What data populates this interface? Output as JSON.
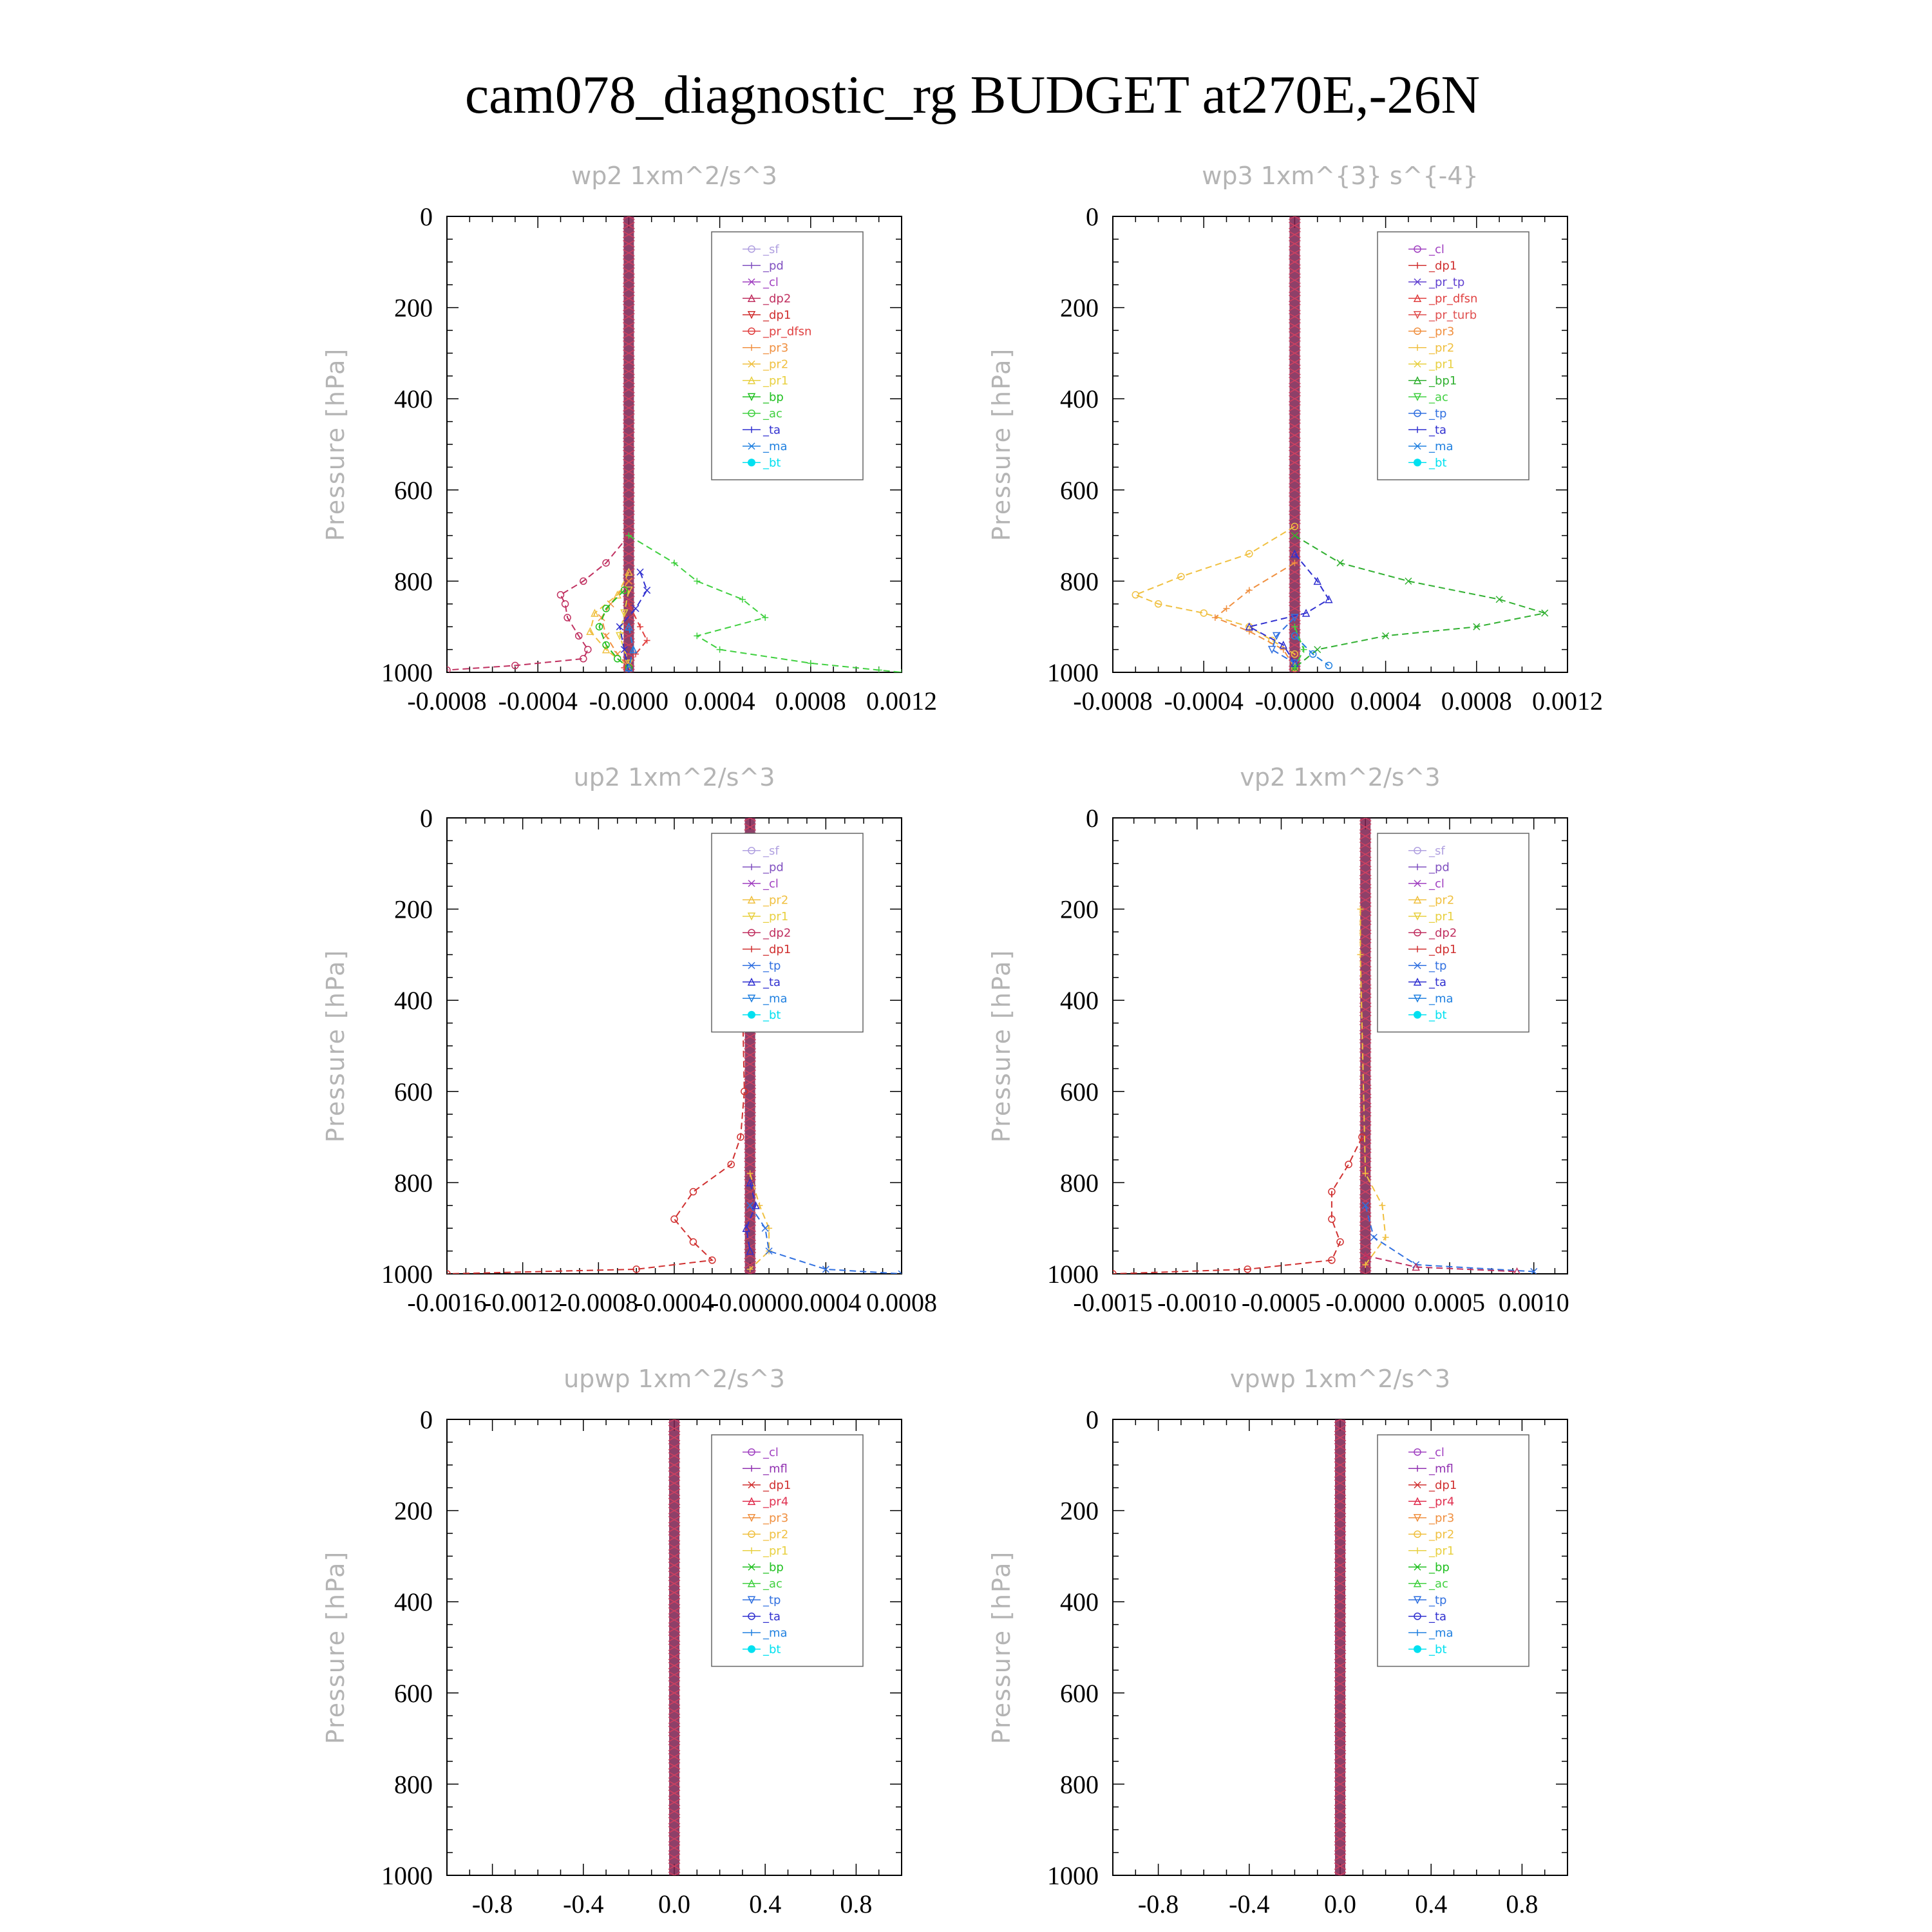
{
  "figure_title": "cam078_diagnostic_rg  BUDGET at270E,-26N",
  "colors": {
    "_sf": "#b0a0e0",
    "_pd": "#8050c0",
    "_cl": "#a040c0",
    "_dp2": "#c03060",
    "_dp1": "#d03030",
    "_pr_dfsn": "#e04040",
    "_pr3": "#f09040",
    "_pr2": "#f0c040",
    "_pr1": "#e8d040",
    "_bp": "#20c020",
    "_ac": "#40d040",
    "_ta": "#3030d0",
    "_ma": "#2080e0",
    "_bt": "#00e0f0",
    "_pr_tp": "#6040d0",
    "_pr_turb": "#e05050",
    "_bp1": "#30b030",
    "_tp": "#3070e0",
    "_mfl": "#9030b0",
    "_pr4": "#e03050"
  },
  "chart_data": [
    {
      "type": "line",
      "title": "wp2   1xm^2/s^3",
      "ylabel": "Pressure [hPa]",
      "xlim": [
        -0.0008,
        0.0012
      ],
      "ylim": [
        1000,
        0
      ],
      "xticks": [
        -0.0008,
        -0.0004,
        0.0,
        0.0004,
        0.0008,
        0.0012
      ],
      "xtick_labels": [
        "-0.0008",
        "-0.0004",
        "-0.0000",
        "0.0004",
        "0.0008",
        "0.0012"
      ],
      "yticks": [
        0,
        200,
        400,
        600,
        800,
        1000
      ],
      "ytick_labels": [
        "0",
        "200",
        "400",
        "600",
        "800",
        "1000"
      ],
      "legend": [
        "_sf",
        "_pd",
        "_cl",
        "_dp2",
        "_dp1",
        "_pr_dfsn",
        "_pr3",
        "_pr2",
        "_pr1",
        "_bp",
        "_ac",
        "_ta",
        "_ma",
        "_bt"
      ],
      "series": [
        {
          "name": "_dp2",
          "y": [
            700,
            760,
            800,
            830,
            850,
            880,
            920,
            950,
            970,
            985,
            995
          ],
          "x": [
            0.0,
            -0.0001,
            -0.0002,
            -0.0003,
            -0.00028,
            -0.00027,
            -0.00022,
            -0.00018,
            -0.0002,
            -0.0005,
            -0.0008
          ]
        },
        {
          "name": "_pr_dfsn",
          "y": [
            850,
            900,
            930,
            960,
            990,
            1000
          ],
          "x": [
            0.0,
            5e-05,
            8e-05,
            3e-05,
            -2e-05,
            0.0
          ]
        },
        {
          "name": "_pr3",
          "y": [
            800,
            850,
            880,
            920,
            960,
            990
          ],
          "x": [
            0.0,
            -8e-05,
            -0.00012,
            -0.0001,
            -5e-05,
            0.0
          ]
        },
        {
          "name": "_pr2",
          "y": [
            780,
            830,
            870,
            910,
            950,
            990
          ],
          "x": [
            0.0,
            -5e-05,
            -0.00015,
            -0.00017,
            -0.0001,
            0.0
          ]
        },
        {
          "name": "_pr1",
          "y": [
            820,
            870,
            920,
            980
          ],
          "x": [
            0.0,
            -2e-05,
            -4e-05,
            0.0
          ]
        },
        {
          "name": "_bp",
          "y": [
            820,
            860,
            900,
            940,
            970,
            990
          ],
          "x": [
            -2e-05,
            -0.0001,
            -0.00013,
            -0.0001,
            -5e-05,
            0.0
          ]
        },
        {
          "name": "_ac",
          "y": [
            700,
            760,
            800,
            840,
            880,
            920,
            950,
            980,
            995,
            1000
          ],
          "x": [
            0.0,
            0.0002,
            0.0003,
            0.0005,
            0.0006,
            0.0003,
            0.0004,
            0.0008,
            0.0011,
            0.0012
          ]
        },
        {
          "name": "_ta",
          "y": [
            780,
            820,
            860,
            900,
            950,
            1000
          ],
          "x": [
            5e-05,
            8e-05,
            3e-05,
            -4e-05,
            -2e-05,
            0.0
          ]
        },
        {
          "name": "_ma",
          "y": [
            900,
            950,
            990
          ],
          "x": [
            0.0,
            2e-05,
            0.0
          ]
        }
      ]
    },
    {
      "type": "line",
      "title": "wp3   1xm^{3} s^{-4}",
      "ylabel": "Pressure [hPa]",
      "xlim": [
        -0.0008,
        0.0012
      ],
      "ylim": [
        1000,
        0
      ],
      "xticks": [
        -0.0008,
        -0.0004,
        0.0,
        0.0004,
        0.0008,
        0.0012
      ],
      "xtick_labels": [
        "-0.0008",
        "-0.0004",
        "-0.0000",
        "0.0004",
        "0.0008",
        "0.0012"
      ],
      "yticks": [
        0,
        200,
        400,
        600,
        800,
        1000
      ],
      "ytick_labels": [
        "0",
        "200",
        "400",
        "600",
        "800",
        "1000"
      ],
      "legend": [
        "_cl",
        "_dp1",
        "_pr_tp",
        "_pr_dfsn",
        "_pr_turb",
        "_pr3",
        "_pr2",
        "_pr1",
        "_bp1",
        "_ac",
        "_tp",
        "_ta",
        "_ma",
        "_bt"
      ],
      "series": [
        {
          "name": "_pr2",
          "y": [
            680,
            740,
            790,
            830,
            850,
            870,
            900,
            930,
            960,
            990
          ],
          "x": [
            0.0,
            -0.0002,
            -0.0005,
            -0.0007,
            -0.0006,
            -0.0004,
            -0.0002,
            -0.0001,
            0.0,
            0.0
          ]
        },
        {
          "name": "_pr3",
          "y": [
            760,
            820,
            860,
            880,
            910,
            950,
            990
          ],
          "x": [
            0.0,
            -0.0002,
            -0.0003,
            -0.00035,
            -0.0002,
            -5e-05,
            0.0
          ]
        },
        {
          "name": "_bp1",
          "y": [
            700,
            760,
            800,
            840,
            870,
            900,
            920,
            950,
            990
          ],
          "x": [
            0.0,
            0.0002,
            0.0005,
            0.0009,
            0.0011,
            0.0008,
            0.0004,
            0.0001,
            0.0
          ]
        },
        {
          "name": "_ta",
          "y": [
            740,
            800,
            840,
            870,
            900,
            940,
            980
          ],
          "x": [
            0.0,
            0.0001,
            0.00015,
            5e-05,
            -0.0002,
            -5e-05,
            0.0
          ]
        },
        {
          "name": "_tp",
          "y": [
            880,
            920,
            950,
            980
          ],
          "x": [
            0.0,
            -8e-05,
            -0.0001,
            0.0
          ]
        },
        {
          "name": "_ma",
          "y": [
            920,
            960,
            985
          ],
          "x": [
            0.0,
            8e-05,
            0.00015
          ]
        },
        {
          "name": "_ac",
          "y": [
            900,
            950,
            990
          ],
          "x": [
            0.0,
            4e-05,
            0.0
          ]
        }
      ]
    },
    {
      "type": "line",
      "title": "up2   1xm^2/s^3",
      "ylabel": "Pressure [hPa]",
      "xlim": [
        -0.0016,
        0.0008
      ],
      "ylim": [
        1000,
        0
      ],
      "xticks": [
        -0.0016,
        -0.0012,
        -0.0008,
        -0.0004,
        0.0,
        0.0004,
        0.0008
      ],
      "xtick_labels": [
        "-0.0016",
        "-0.0012",
        "-0.0008",
        "-0.0004",
        "-0.0000",
        "0.0004",
        "0.0008"
      ],
      "yticks": [
        0,
        200,
        400,
        600,
        800,
        1000
      ],
      "ytick_labels": [
        "0",
        "200",
        "400",
        "600",
        "800",
        "1000"
      ],
      "legend": [
        "_sf",
        "_pd",
        "_cl",
        "_pr2",
        "_pr1",
        "_dp2",
        "_dp1",
        "_tp",
        "_ta",
        "_ma",
        "_bt"
      ],
      "series": [
        {
          "name": "_dp1",
          "y": [
            150,
            250,
            400,
            600,
            700,
            760,
            820,
            880,
            930,
            970,
            990,
            1000
          ],
          "x": [
            0.0,
            -3e-05,
            -4e-05,
            -3e-05,
            -5e-05,
            -0.0001,
            -0.0003,
            -0.0004,
            -0.0003,
            -0.0002,
            -0.0006,
            -0.0016
          ]
        },
        {
          "name": "_pr2",
          "y": [
            780,
            850,
            900,
            950,
            990
          ],
          "x": [
            0.0,
            5e-05,
            0.0001,
            0.0001,
            0.0
          ]
        },
        {
          "name": "_tp",
          "y": [
            850,
            900,
            950,
            990,
            1000
          ],
          "x": [
            0.0,
            8e-05,
            0.0001,
            0.0004,
            0.0008
          ]
        },
        {
          "name": "_ta",
          "y": [
            800,
            850,
            900,
            950
          ],
          "x": [
            0.0,
            3e-05,
            -2e-05,
            0.0
          ]
        }
      ]
    },
    {
      "type": "line",
      "title": "vp2   1xm^2/s^3",
      "ylabel": "Pressure [hPa]",
      "xlim": [
        -0.0015,
        0.0012
      ],
      "ylim": [
        1000,
        0
      ],
      "xticks": [
        -0.0015,
        -0.001,
        -0.0005,
        0.0,
        0.0005,
        0.001
      ],
      "xtick_labels": [
        "-0.0015",
        "-0.0010",
        "-0.0005",
        "-0.0000",
        "0.0005",
        "0.0010"
      ],
      "yticks": [
        0,
        200,
        400,
        600,
        800,
        1000
      ],
      "ytick_labels": [
        "0",
        "200",
        "400",
        "600",
        "800",
        "1000"
      ],
      "legend": [
        "_sf",
        "_pd",
        "_cl",
        "_pr2",
        "_pr1",
        "_dp2",
        "_dp1",
        "_tp",
        "_ta",
        "_ma",
        "_bt"
      ],
      "series": [
        {
          "name": "_dp1",
          "y": [
            700,
            760,
            820,
            880,
            930,
            970,
            990,
            1000
          ],
          "x": [
            -2e-05,
            -0.0001,
            -0.0002,
            -0.0002,
            -0.00015,
            -0.0002,
            -0.0007,
            -0.0015
          ]
        },
        {
          "name": "_pr2",
          "y": [
            200,
            300,
            780,
            850,
            920,
            980
          ],
          "x": [
            -3e-05,
            -3e-05,
            0.0,
            0.0001,
            0.00012,
            0.0
          ]
        },
        {
          "name": "_tp",
          "y": [
            850,
            920,
            980,
            995
          ],
          "x": [
            0.0,
            5e-05,
            0.0003,
            0.001
          ]
        },
        {
          "name": "_dp2",
          "y": [
            960,
            985,
            995
          ],
          "x": [
            0.0,
            0.0003,
            0.0009
          ]
        }
      ]
    },
    {
      "type": "line",
      "title": "upwp   1xm^2/s^3",
      "ylabel": "Pressure [hPa]",
      "xlim": [
        -1.0,
        1.0
      ],
      "ylim": [
        1000,
        0
      ],
      "xticks": [
        -0.8,
        -0.4,
        0.0,
        0.4,
        0.8
      ],
      "xtick_labels": [
        "-0.8",
        "-0.4",
        "0.0",
        "0.4",
        "0.8"
      ],
      "yticks": [
        0,
        200,
        400,
        600,
        800,
        1000
      ],
      "ytick_labels": [
        "0",
        "200",
        "400",
        "600",
        "800",
        "1000"
      ],
      "legend": [
        "_cl",
        "_mfl",
        "_dp1",
        "_pr4",
        "_pr3",
        "_pr2",
        "_pr1",
        "_bp",
        "_ac",
        "_tp",
        "_ta",
        "_ma",
        "_bt"
      ],
      "series": []
    },
    {
      "type": "line",
      "title": "vpwp   1xm^2/s^3",
      "ylabel": "Pressure [hPa]",
      "xlim": [
        -1.0,
        1.0
      ],
      "ylim": [
        1000,
        0
      ],
      "xticks": [
        -0.8,
        -0.4,
        0.0,
        0.4,
        0.8
      ],
      "xtick_labels": [
        "-0.8",
        "-0.4",
        "0.0",
        "0.4",
        "0.8"
      ],
      "yticks": [
        0,
        200,
        400,
        600,
        800,
        1000
      ],
      "ytick_labels": [
        "0",
        "200",
        "400",
        "600",
        "800",
        "1000"
      ],
      "legend": [
        "_cl",
        "_mfl",
        "_dp1",
        "_pr4",
        "_pr3",
        "_pr2",
        "_pr1",
        "_bp",
        "_ac",
        "_tp",
        "_ta",
        "_ma",
        "_bt"
      ],
      "series": []
    }
  ]
}
